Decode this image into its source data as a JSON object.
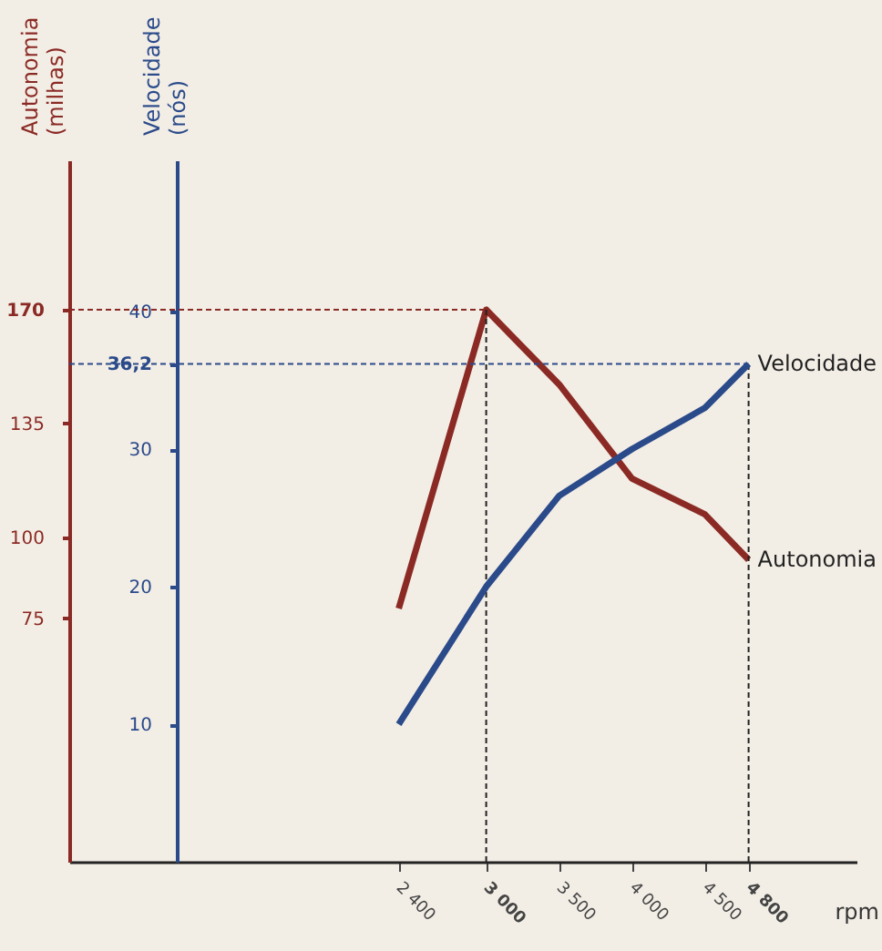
{
  "chart_data": {
    "type": "line",
    "x": [
      2400,
      3000,
      3500,
      4000,
      4500,
      4800
    ],
    "xlabel": "rpm",
    "ylabel": "Autonomia\n(milhas)",
    "y2label": "Velocidade\n(nós)",
    "xlim": [
      140,
      5540
    ],
    "xticks": [
      {
        "value": 2400,
        "label": "2 400"
      },
      {
        "value": 3000,
        "label": "3 000"
      },
      {
        "value": 3500,
        "label": "3 500"
      },
      {
        "value": 4000,
        "label": "4 000"
      },
      {
        "value": 4500,
        "label": "4 500"
      },
      {
        "value": 4800,
        "label": "4 800"
      }
    ],
    "ylim": [
      0,
      216
    ],
    "yticks": [
      75,
      100,
      135,
      170
    ],
    "y2lim": [
      0,
      51
    ],
    "y2ticks": [
      10,
      20,
      30,
      {
        "value": 36.2,
        "label": "36,2"
      },
      40
    ],
    "series": [
      {
        "name": "Autonomia",
        "color": "#8b2a24",
        "values": [
          78,
          170,
          147,
          118,
          107,
          93
        ]
      },
      {
        "name": "Velocidade",
        "color": "#2a4a8a",
        "axis": "y2",
        "values": [
          10,
          20,
          26.6,
          30,
          33,
          36.2
        ]
      }
    ],
    "ref_lines": [
      {
        "axis": "y",
        "value": 170,
        "color": "#8b2a24",
        "line_style": "dashed"
      },
      {
        "axis": "y2",
        "value": 36.2,
        "color": "#2a4a8a",
        "line_style": "dashed"
      },
      {
        "axis": "x",
        "value": 3000,
        "color": "#222222",
        "line_style": "dashed"
      },
      {
        "axis": "x",
        "value": 4800,
        "color": "#222222",
        "line_style": "dashed"
      }
    ],
    "legend": false,
    "grid": false,
    "marker": "none",
    "line_style": "solid"
  }
}
